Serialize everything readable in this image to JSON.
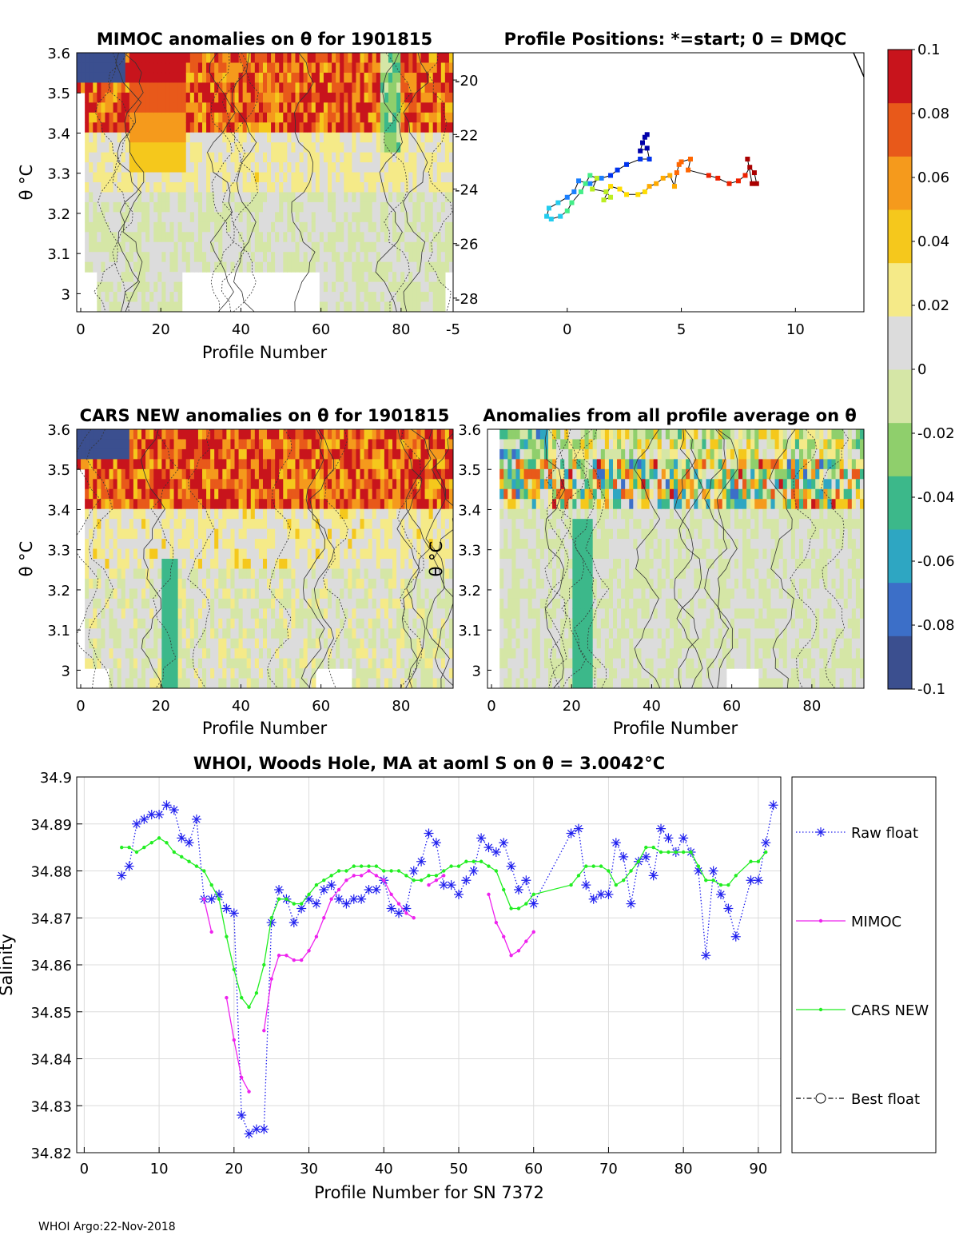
{
  "footer": "WHOI Argo:22-Nov-2018",
  "colorbar": {
    "ticks": [
      "0.1",
      "0.08",
      "0.06",
      "0.04",
      "0.02",
      "0",
      "-0.02",
      "-0.04",
      "-0.06",
      "-0.08",
      "-0.1"
    ],
    "range": [
      -0.1,
      0.1
    ],
    "colors": [
      "#3b4f8f",
      "#3c6fc8",
      "#2ea6c2",
      "#3cb88a",
      "#8fcf6c",
      "#d5e6a6",
      "#dcdcdc",
      "#f5ea88",
      "#f5c81c",
      "#f59a1c",
      "#e8591a",
      "#c8141c"
    ]
  },
  "panels": {
    "mimoc": {
      "title": "MIMOC anomalies on θ  for 1901815",
      "xlabel": "Profile Number",
      "ylabel": "θ °C",
      "xticks": [
        "0",
        "20",
        "40",
        "60",
        "80"
      ],
      "yticks": [
        "3.6",
        "3.5",
        "3.4",
        "3.3",
        "3.2",
        "3.1",
        "3"
      ]
    },
    "positions": {
      "title": "Profile Positions: *=start; 0 = DMQC",
      "xticks": [
        "-5",
        "0",
        "5",
        "10"
      ],
      "yticks": [
        "-20",
        "-22",
        "-24",
        "-26",
        "-28"
      ]
    },
    "cars": {
      "title": "CARS NEW anomalies on θ for 1901815",
      "xlabel": "Profile Number",
      "ylabel": "θ °C",
      "xticks": [
        "0",
        "20",
        "40",
        "60",
        "80"
      ],
      "yticks": [
        "3.6",
        "3.5",
        "3.4",
        "3.3",
        "3.2",
        "3.1",
        "3"
      ]
    },
    "allavg": {
      "title": "Anomalies from all profile average on θ",
      "xlabel": "Profile Number",
      "ylabel": "θ °C",
      "xticks": [
        "0",
        "20",
        "40",
        "60",
        "80"
      ],
      "yticks": [
        "3.6",
        "3.5",
        "3.4",
        "3.3",
        "3.2",
        "3.1",
        "3"
      ]
    }
  },
  "chart_data": {
    "type": "line",
    "title": "WHOI, Woods Hole, MA at aoml S on θ = 3.0042°C",
    "xlabel": "Profile Number for SN 7372",
    "ylabel": "Salinity",
    "xlim": [
      -1,
      93
    ],
    "ylim": [
      34.82,
      34.9
    ],
    "xticks": [
      "0",
      "10",
      "20",
      "30",
      "40",
      "50",
      "60",
      "70",
      "80",
      "90"
    ],
    "yticks": [
      "34.9",
      "34.89",
      "34.88",
      "34.87",
      "34.86",
      "34.85",
      "34.84",
      "34.83",
      "34.82"
    ],
    "legend_position": "outside-right",
    "series": [
      {
        "name": "Raw float",
        "color": "#2020ee",
        "x": [
          5,
          6,
          7,
          8,
          9,
          10,
          11,
          12,
          13,
          14,
          15,
          16,
          17,
          18,
          19,
          20,
          21,
          22,
          23,
          24,
          25,
          26,
          27,
          28,
          29,
          30,
          31,
          32,
          33,
          34,
          35,
          36,
          37,
          38,
          39,
          40,
          41,
          42,
          43,
          44,
          45,
          46,
          47,
          48,
          49,
          50,
          51,
          52,
          53,
          54,
          55,
          56,
          57,
          58,
          59,
          60,
          65,
          66,
          67,
          68,
          69,
          70,
          71,
          72,
          73,
          74,
          75,
          76,
          77,
          78,
          79,
          80,
          81,
          82,
          83,
          84,
          85,
          86,
          87,
          89,
          90,
          91,
          92
        ],
        "y": [
          34.879,
          34.881,
          34.89,
          34.891,
          34.892,
          34.892,
          34.894,
          34.893,
          34.887,
          34.886,
          34.891,
          34.874,
          34.874,
          34.875,
          34.872,
          34.871,
          34.828,
          34.824,
          34.825,
          34.825,
          34.869,
          34.876,
          34.874,
          34.869,
          34.872,
          34.874,
          34.873,
          34.876,
          34.877,
          34.874,
          34.873,
          34.874,
          34.874,
          34.876,
          34.876,
          34.878,
          34.872,
          34.871,
          34.872,
          34.88,
          34.882,
          34.888,
          34.886,
          34.877,
          34.877,
          34.875,
          34.878,
          34.88,
          34.887,
          34.885,
          34.884,
          34.886,
          34.881,
          34.876,
          34.878,
          34.873,
          34.888,
          34.889,
          34.877,
          34.874,
          34.875,
          34.875,
          34.886,
          34.883,
          34.873,
          34.882,
          34.883,
          34.879,
          34.889,
          34.887,
          34.884,
          34.887,
          34.884,
          34.88,
          34.862,
          34.88,
          34.875,
          34.872,
          34.866,
          34.878,
          34.878,
          34.886,
          34.894
        ]
      },
      {
        "name": "MIMOC",
        "color": "#ee22ee",
        "segments": [
          {
            "x": [
              16,
              17
            ],
            "y": [
              34.874,
              34.867
            ]
          },
          {
            "x": [
              19,
              20,
              21,
              22
            ],
            "y": [
              34.853,
              34.844,
              34.836,
              34.833
            ]
          },
          {
            "x": [
              24,
              25,
              26,
              27,
              28,
              29,
              30,
              31,
              32,
              33,
              34,
              35,
              36,
              37,
              38,
              39,
              40,
              41,
              42,
              43,
              44
            ],
            "y": [
              34.846,
              34.857,
              34.862,
              34.862,
              34.861,
              34.861,
              34.863,
              34.866,
              34.87,
              34.874,
              34.876,
              34.878,
              34.879,
              34.879,
              34.88,
              34.879,
              34.878,
              34.875,
              34.873,
              34.871,
              34.87
            ]
          },
          {
            "x": [
              46,
              47,
              48
            ],
            "y": [
              34.877,
              34.878,
              34.879
            ]
          },
          {
            "x": [
              54,
              55,
              56,
              57,
              58,
              59,
              60
            ],
            "y": [
              34.875,
              34.869,
              34.866,
              34.862,
              34.863,
              34.865,
              34.867
            ]
          }
        ]
      },
      {
        "name": "CARS NEW",
        "color": "#22ee22",
        "x": [
          5,
          6,
          7,
          8,
          9,
          10,
          11,
          12,
          13,
          14,
          15,
          16,
          17,
          18,
          19,
          20,
          21,
          22,
          23,
          24,
          25,
          26,
          27,
          28,
          29,
          30,
          31,
          32,
          33,
          34,
          35,
          36,
          37,
          38,
          39,
          40,
          41,
          42,
          43,
          44,
          45,
          46,
          47,
          48,
          49,
          50,
          51,
          52,
          53,
          54,
          55,
          56,
          57,
          58,
          59,
          60,
          65,
          66,
          67,
          68,
          69,
          70,
          71,
          72,
          73,
          74,
          75,
          76,
          77,
          78,
          79,
          80,
          81,
          82,
          83,
          84,
          85,
          86,
          87,
          89,
          90,
          91
        ],
        "y": [
          34.885,
          34.885,
          34.884,
          34.885,
          34.886,
          34.887,
          34.886,
          34.884,
          34.883,
          34.882,
          34.881,
          34.88,
          34.877,
          34.874,
          34.866,
          34.859,
          34.853,
          34.851,
          34.854,
          34.86,
          34.87,
          34.874,
          34.874,
          34.873,
          34.873,
          34.875,
          34.877,
          34.878,
          34.879,
          34.88,
          34.88,
          34.881,
          34.881,
          34.881,
          34.881,
          34.88,
          34.88,
          34.88,
          34.879,
          34.878,
          34.878,
          34.879,
          34.879,
          34.88,
          34.881,
          34.881,
          34.882,
          34.882,
          34.882,
          34.881,
          34.88,
          34.876,
          34.872,
          34.872,
          34.873,
          34.875,
          34.877,
          34.879,
          34.881,
          34.881,
          34.881,
          34.88,
          34.877,
          34.878,
          34.88,
          34.882,
          34.885,
          34.885,
          34.884,
          34.884,
          34.884,
          34.884,
          34.884,
          34.881,
          34.878,
          34.878,
          34.877,
          34.877,
          34.879,
          34.882,
          34.882,
          34.884
        ]
      },
      {
        "name": "Best float",
        "color": "#000000",
        "x": [],
        "y": []
      }
    ]
  }
}
